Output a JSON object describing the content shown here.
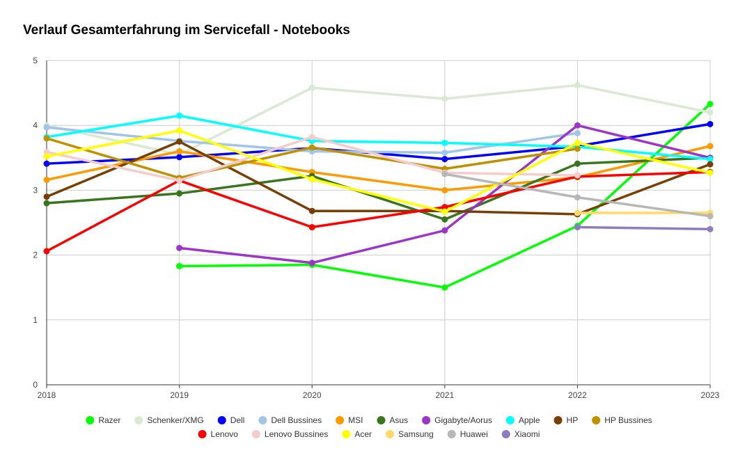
{
  "chart_data": {
    "type": "line",
    "title": "Verlauf Gesamterfahrung im Servicefall - Notebooks",
    "xlabel": "",
    "ylabel": "",
    "x": [
      "2018",
      "2019",
      "2020",
      "2021",
      "2022",
      "2023"
    ],
    "ylim": [
      0,
      5
    ],
    "yticks": [
      "0",
      "1",
      "2",
      "3",
      "4",
      "5"
    ],
    "grid": true,
    "legend_position": "bottom",
    "series": [
      {
        "name": "Razer",
        "color": "#00ff00",
        "values": [
          null,
          1.83,
          1.85,
          1.5,
          2.45,
          4.33
        ]
      },
      {
        "name": "Schenker/XMG",
        "color": "#d9ead3",
        "values": [
          4.0,
          3.55,
          4.58,
          4.41,
          4.62,
          4.2
        ]
      },
      {
        "name": "Dell",
        "color": "#0000ff",
        "values": [
          3.41,
          3.51,
          3.65,
          3.48,
          3.68,
          4.02
        ]
      },
      {
        "name": "Dell Bussines",
        "color": "#9fc5e8",
        "values": [
          3.97,
          3.76,
          3.6,
          3.58,
          3.88,
          null
        ]
      },
      {
        "name": "MSI",
        "color": "#ff9900",
        "values": [
          3.16,
          3.6,
          3.28,
          3.0,
          3.2,
          3.68
        ]
      },
      {
        "name": "Asus",
        "color": "#38761d",
        "values": [
          2.8,
          2.95,
          3.22,
          2.55,
          3.41,
          3.5
        ]
      },
      {
        "name": "Gigabyte/Aorus",
        "color": "#9c35c8",
        "values": [
          null,
          2.11,
          1.88,
          2.38,
          4.0,
          3.5
        ]
      },
      {
        "name": "Apple",
        "color": "#00ffff",
        "values": [
          3.82,
          4.15,
          3.76,
          3.73,
          3.67,
          3.48
        ]
      },
      {
        "name": "HP",
        "color": "#783f04",
        "values": [
          2.9,
          3.75,
          2.68,
          2.68,
          2.63,
          3.4
        ]
      },
      {
        "name": "HP Bussines",
        "color": "#bf9000",
        "values": [
          3.8,
          3.19,
          3.66,
          3.33,
          3.64,
          null
        ]
      },
      {
        "name": "Lenovo",
        "color": "#ff0000",
        "values": [
          2.06,
          3.15,
          2.43,
          2.74,
          3.21,
          3.28
        ]
      },
      {
        "name": "Lenovo Bussines",
        "color": "#f4cccc",
        "values": [
          3.59,
          3.15,
          3.82,
          3.27,
          3.23,
          null
        ]
      },
      {
        "name": "Acer",
        "color": "#ffff00",
        "values": [
          3.52,
          3.92,
          3.17,
          2.67,
          3.73,
          3.27
        ]
      },
      {
        "name": "Samsung",
        "color": "#ffd966",
        "values": [
          null,
          null,
          null,
          null,
          2.65,
          2.65
        ]
      },
      {
        "name": "Huawei",
        "color": "#b7b7b7",
        "values": [
          null,
          null,
          null,
          3.25,
          2.89,
          2.6
        ]
      },
      {
        "name": "Xiaomi",
        "color": "#8e7cc3",
        "values": [
          null,
          null,
          null,
          null,
          2.43,
          2.4
        ]
      }
    ]
  }
}
